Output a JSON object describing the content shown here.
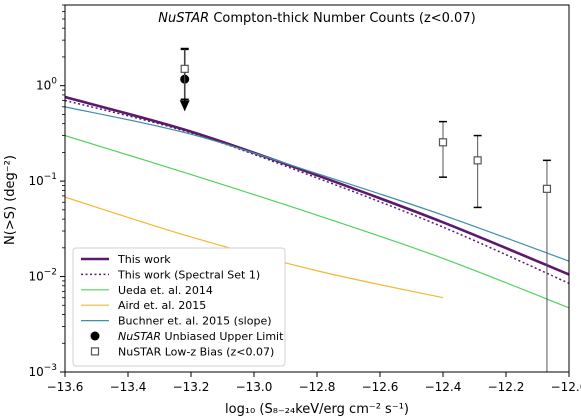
{
  "chart_data": {
    "type": "line",
    "title_italic": "NuSTAR",
    "title_rest": " Compton-thick Number Counts (z<0.07)",
    "xlabel": "log₁₀ (S₈₋₂₄keV/erg cm⁻² s⁻¹)",
    "ylabel": "N(>S) (deg⁻²)",
    "xlim": [
      -13.6,
      -12.0
    ],
    "ylim": [
      0.001,
      7.0
    ],
    "yscale": "log",
    "grid": false,
    "legend_position": "lower-left",
    "xticks": [
      -13.6,
      -13.4,
      -13.2,
      -13.0,
      -12.8,
      -12.6,
      -12.4,
      -12.2,
      -12.0
    ],
    "xtick_labels": [
      "−13.6",
      "−13.4",
      "−13.2",
      "−13.0",
      "−12.8",
      "−12.6",
      "−12.4",
      "−12.2",
      "−12.0"
    ],
    "yticks": [
      0.001,
      0.01,
      0.1,
      1.0
    ],
    "ytick_labels": [
      {
        "base": "10",
        "exp": "−3"
      },
      {
        "base": "10",
        "exp": "−2"
      },
      {
        "base": "10",
        "exp": "−1"
      },
      {
        "base": "10",
        "exp": "0"
      }
    ],
    "series": [
      {
        "name": "This work",
        "color": "#5b1a6e",
        "width": 2.6,
        "dash": "",
        "x": [
          -13.6,
          -13.2,
          -12.8,
          -12.4,
          -12.0
        ],
        "y": [
          0.76,
          0.33,
          0.115,
          0.037,
          0.0105
        ]
      },
      {
        "name": "This work (Spectral Set 1)",
        "color": "#5b1a6e",
        "width": 1.5,
        "dash": "2,2.5",
        "x": [
          -13.6,
          -13.2,
          -12.8,
          -12.4,
          -12.0
        ],
        "y": [
          0.7,
          0.32,
          0.108,
          0.033,
          0.0085
        ]
      },
      {
        "name": "Ueda et. al. 2014",
        "color": "#4fd45a",
        "width": 1.2,
        "dash": "",
        "x": [
          -13.6,
          -13.2,
          -12.8,
          -12.4,
          -12.0
        ],
        "y": [
          0.3,
          0.117,
          0.044,
          0.0155,
          0.0047
        ]
      },
      {
        "name": "Aird et. al. 2015",
        "color": "#f5b731",
        "width": 1.2,
        "dash": "",
        "x": [
          -13.6,
          -13.2,
          -12.8,
          -12.4
        ],
        "y": [
          0.068,
          0.026,
          0.0115,
          0.006
        ]
      },
      {
        "name": "Buchner et. al. 2015 (slope)",
        "color": "#3f8fa5",
        "width": 1.2,
        "dash": "",
        "x": [
          -13.6,
          -13.2,
          -12.8,
          -12.4,
          -12.0
        ],
        "y": [
          0.6,
          0.31,
          0.12,
          0.044,
          0.0145
        ]
      }
    ],
    "upper_limit": {
      "name_italic": "NuSTAR",
      "name_rest": " Unbiased Upper Limit",
      "x": -13.22,
      "y": 1.17,
      "y_err_high": 2.4,
      "arrow_to": 0.58
    },
    "low_z_bias": {
      "name": "NuSTAR Low-z Bias (z<0.07)",
      "points": [
        {
          "x": -13.22,
          "y": 1.5,
          "ylow": 0.72,
          "yhigh": 2.45
        },
        {
          "x": -12.4,
          "y": 0.255,
          "ylow": 0.11,
          "yhigh": 0.42
        },
        {
          "x": -12.29,
          "y": 0.165,
          "ylow": 0.053,
          "yhigh": 0.3
        },
        {
          "x": -12.07,
          "y": 0.083,
          "ylow": 0.001,
          "yhigh": 0.165
        }
      ]
    }
  }
}
